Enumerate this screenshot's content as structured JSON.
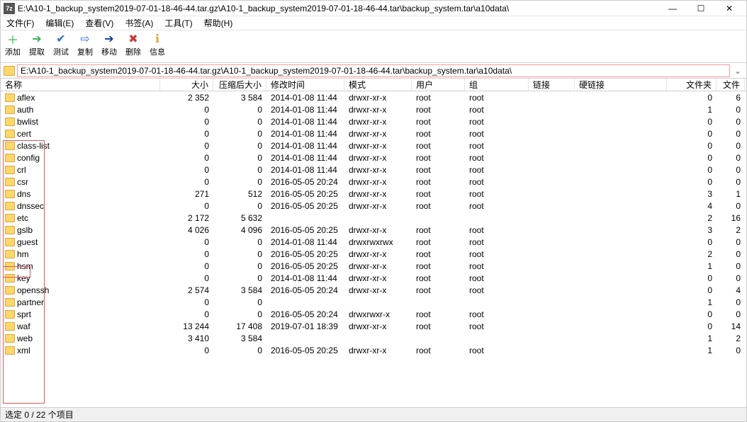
{
  "title": "E:\\A10-1_backup_system2019-07-01-18-46-44.tar.gz\\A10-1_backup_system2019-07-01-18-46-44.tar\\backup_system.tar\\a10data\\",
  "app_icon_text": "7z",
  "menus": [
    "文件(F)",
    "编辑(E)",
    "查看(V)",
    "书签(A)",
    "工具(T)",
    "帮助(H)"
  ],
  "toolbar": [
    {
      "key": "add",
      "label": "添加",
      "glyph": "＋",
      "color": "#2bb24c"
    },
    {
      "key": "extract",
      "label": "提取",
      "glyph": "➔",
      "color": "#2bb24c"
    },
    {
      "key": "test",
      "label": "测试",
      "glyph": "✔",
      "color": "#2f6fd0"
    },
    {
      "key": "copy",
      "label": "复制",
      "glyph": "⇨",
      "color": "#2f6fd0"
    },
    {
      "key": "move",
      "label": "移动",
      "glyph": "➔",
      "color": "#103a9c"
    },
    {
      "key": "delete",
      "label": "删除",
      "glyph": "✖",
      "color": "#d43535"
    },
    {
      "key": "info",
      "label": "信息",
      "glyph": "ℹ",
      "color": "#d6a93e"
    }
  ],
  "path": "E:\\A10-1_backup_system2019-07-01-18-46-44.tar.gz\\A10-1_backup_system2019-07-01-18-46-44.tar\\backup_system.tar\\a10data\\",
  "columns": [
    "名称",
    "大小",
    "压缩后大小",
    "修改时间",
    "模式",
    "用户",
    "组",
    "链接",
    "硬链接",
    "文件夹",
    "文件"
  ],
  "rows": [
    {
      "name": "aflex",
      "size": "2 352",
      "packed": "3 584",
      "mtime": "2014-01-08 11:44",
      "mode": "drwxr-xr-x",
      "user": "root",
      "group": "root",
      "link": "",
      "hard": "",
      "folders": "0",
      "files": "6"
    },
    {
      "name": "auth",
      "size": "0",
      "packed": "0",
      "mtime": "2014-01-08 11:44",
      "mode": "drwxr-xr-x",
      "user": "root",
      "group": "root",
      "link": "",
      "hard": "",
      "folders": "1",
      "files": "0"
    },
    {
      "name": "bwlist",
      "size": "0",
      "packed": "0",
      "mtime": "2014-01-08 11:44",
      "mode": "drwxr-xr-x",
      "user": "root",
      "group": "root",
      "link": "",
      "hard": "",
      "folders": "0",
      "files": "0"
    },
    {
      "name": "cert",
      "size": "0",
      "packed": "0",
      "mtime": "2014-01-08 11:44",
      "mode": "drwxr-xr-x",
      "user": "root",
      "group": "root",
      "link": "",
      "hard": "",
      "folders": "0",
      "files": "0"
    },
    {
      "name": "class-list",
      "size": "0",
      "packed": "0",
      "mtime": "2014-01-08 11:44",
      "mode": "drwxr-xr-x",
      "user": "root",
      "group": "root",
      "link": "",
      "hard": "",
      "folders": "0",
      "files": "0"
    },
    {
      "name": "config",
      "size": "0",
      "packed": "0",
      "mtime": "2014-01-08 11:44",
      "mode": "drwxr-xr-x",
      "user": "root",
      "group": "root",
      "link": "",
      "hard": "",
      "folders": "0",
      "files": "0"
    },
    {
      "name": "crl",
      "size": "0",
      "packed": "0",
      "mtime": "2014-01-08 11:44",
      "mode": "drwxr-xr-x",
      "user": "root",
      "group": "root",
      "link": "",
      "hard": "",
      "folders": "0",
      "files": "0"
    },
    {
      "name": "csr",
      "size": "0",
      "packed": "0",
      "mtime": "2016-05-05 20:24",
      "mode": "drwxr-xr-x",
      "user": "root",
      "group": "root",
      "link": "",
      "hard": "",
      "folders": "0",
      "files": "0"
    },
    {
      "name": "dns",
      "size": "271",
      "packed": "512",
      "mtime": "2016-05-05 20:25",
      "mode": "drwxr-xr-x",
      "user": "root",
      "group": "root",
      "link": "",
      "hard": "",
      "folders": "3",
      "files": "1"
    },
    {
      "name": "dnssec",
      "size": "0",
      "packed": "0",
      "mtime": "2016-05-05 20:25",
      "mode": "drwxr-xr-x",
      "user": "root",
      "group": "root",
      "link": "",
      "hard": "",
      "folders": "4",
      "files": "0"
    },
    {
      "name": "etc",
      "size": "2 172",
      "packed": "5 632",
      "mtime": "",
      "mode": "",
      "user": "",
      "group": "",
      "link": "",
      "hard": "",
      "folders": "2",
      "files": "16"
    },
    {
      "name": "gslb",
      "size": "4 026",
      "packed": "4 096",
      "mtime": "2016-05-05 20:25",
      "mode": "drwxr-xr-x",
      "user": "root",
      "group": "root",
      "link": "",
      "hard": "",
      "folders": "3",
      "files": "2"
    },
    {
      "name": "guest",
      "size": "0",
      "packed": "0",
      "mtime": "2014-01-08 11:44",
      "mode": "drwxrwxrwx",
      "user": "root",
      "group": "root",
      "link": "",
      "hard": "",
      "folders": "0",
      "files": "0"
    },
    {
      "name": "hm",
      "size": "0",
      "packed": "0",
      "mtime": "2016-05-05 20:25",
      "mode": "drwxr-xr-x",
      "user": "root",
      "group": "root",
      "link": "",
      "hard": "",
      "folders": "2",
      "files": "0"
    },
    {
      "name": "hsm",
      "size": "0",
      "packed": "0",
      "mtime": "2016-05-05 20:25",
      "mode": "drwxr-xr-x",
      "user": "root",
      "group": "root",
      "link": "",
      "hard": "",
      "folders": "1",
      "files": "0"
    },
    {
      "name": "key",
      "size": "0",
      "packed": "0",
      "mtime": "2014-01-08 11:44",
      "mode": "drwxr-xr-x",
      "user": "root",
      "group": "root",
      "link": "",
      "hard": "",
      "folders": "0",
      "files": "0"
    },
    {
      "name": "openssh",
      "size": "2 574",
      "packed": "3 584",
      "mtime": "2016-05-05 20:24",
      "mode": "drwxr-xr-x",
      "user": "root",
      "group": "root",
      "link": "",
      "hard": "",
      "folders": "0",
      "files": "4"
    },
    {
      "name": "partner",
      "size": "0",
      "packed": "0",
      "mtime": "",
      "mode": "",
      "user": "",
      "group": "",
      "link": "",
      "hard": "",
      "folders": "1",
      "files": "0"
    },
    {
      "name": "sprt",
      "size": "0",
      "packed": "0",
      "mtime": "2016-05-05 20:24",
      "mode": "drwxrwxr-x",
      "user": "root",
      "group": "root",
      "link": "",
      "hard": "",
      "folders": "0",
      "files": "0"
    },
    {
      "name": "waf",
      "size": "13 244",
      "packed": "17 408",
      "mtime": "2019-07-01 18:39",
      "mode": "drwxr-xr-x",
      "user": "root",
      "group": "root",
      "link": "",
      "hard": "",
      "folders": "0",
      "files": "14"
    },
    {
      "name": "web",
      "size": "3 410",
      "packed": "3 584",
      "mtime": "",
      "mode": "",
      "user": "",
      "group": "",
      "link": "",
      "hard": "",
      "folders": "1",
      "files": "2"
    },
    {
      "name": "xml",
      "size": "0",
      "packed": "0",
      "mtime": "2016-05-05 20:25",
      "mode": "drwxr-xr-x",
      "user": "root",
      "group": "root",
      "link": "",
      "hard": "",
      "folders": "1",
      "files": "0"
    }
  ],
  "status": "选定 0 / 22 个项目",
  "colors": {
    "highlight": "#e05555",
    "folder": "#ffd76b"
  }
}
